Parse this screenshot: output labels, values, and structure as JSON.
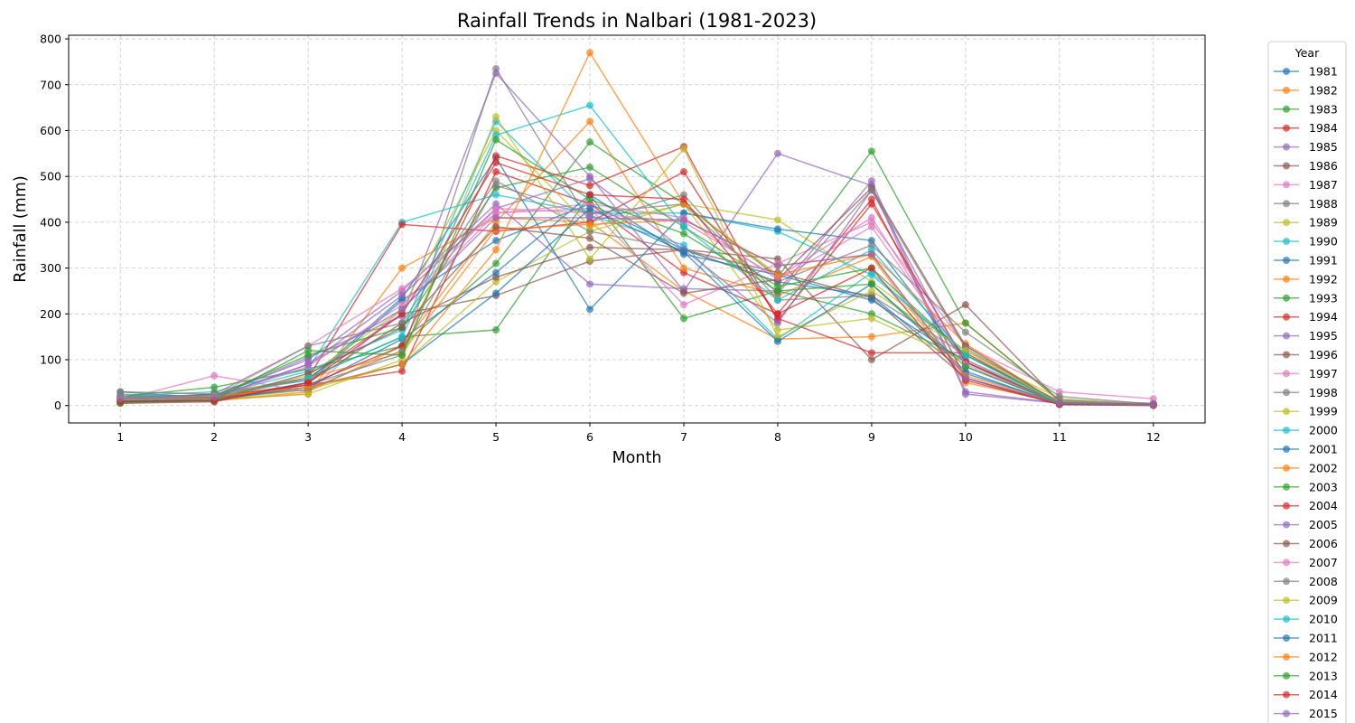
{
  "chart_data": {
    "type": "line",
    "title": "Rainfall Trends in Nalbari (1981-2023)",
    "xlabel": "Month",
    "ylabel": "Rainfall (mm)",
    "x": [
      1,
      2,
      3,
      4,
      5,
      6,
      7,
      8,
      9,
      10,
      11,
      12
    ],
    "xlim": [
      0.45,
      12.55
    ],
    "ylim": [
      -38,
      808
    ],
    "yticks": [
      0,
      100,
      200,
      300,
      400,
      500,
      600,
      700,
      800
    ],
    "grid": true,
    "legend": {
      "title": "Year",
      "placement": "outside-right"
    },
    "series": [
      {
        "name": "1981",
        "color": "#1f77b4",
        "values": [
          30,
          15,
          50,
          230,
          360,
          440,
          340,
          270,
          240,
          70,
          5,
          2
        ]
      },
      {
        "name": "1982",
        "color": "#ff7f0e",
        "values": [
          20,
          12,
          25,
          300,
          410,
          400,
          250,
          145,
          150,
          180,
          10,
          3
        ]
      },
      {
        "name": "1983",
        "color": "#2ca02c",
        "values": [
          8,
          20,
          60,
          150,
          165,
          460,
          190,
          250,
          200,
          100,
          4,
          2
        ]
      },
      {
        "name": "1984",
        "color": "#d62728",
        "values": [
          15,
          20,
          45,
          75,
          510,
          440,
          290,
          200,
          450,
          60,
          3,
          1
        ]
      },
      {
        "name": "1985",
        "color": "#9467bd",
        "values": [
          20,
          22,
          100,
          250,
          440,
          265,
          255,
          250,
          490,
          30,
          5,
          2
        ]
      },
      {
        "name": "1986",
        "color": "#8c564b",
        "values": [
          10,
          15,
          60,
          200,
          240,
          315,
          340,
          320,
          100,
          220,
          8,
          3
        ]
      },
      {
        "name": "1987",
        "color": "#e377c2",
        "values": [
          12,
          65,
          30,
          210,
          420,
          430,
          220,
          310,
          400,
          130,
          30,
          15
        ]
      },
      {
        "name": "1988",
        "color": "#7f7f7f",
        "values": [
          25,
          15,
          45,
          110,
          735,
          400,
          460,
          230,
          240,
          110,
          10,
          5
        ]
      },
      {
        "name": "1989",
        "color": "#bcbd22",
        "values": [
          15,
          12,
          35,
          90,
          270,
          380,
          440,
          405,
          270,
          120,
          15,
          2
        ]
      },
      {
        "name": "1990",
        "color": "#17becf",
        "values": [
          20,
          30,
          80,
          400,
          460,
          420,
          420,
          380,
          285,
          110,
          8,
          1
        ]
      },
      {
        "name": "1991",
        "color": "#1f77b4",
        "values": [
          10,
          25,
          55,
          235,
          540,
          210,
          420,
          385,
          360,
          95,
          3,
          0
        ]
      },
      {
        "name": "1992",
        "color": "#ff7f0e",
        "values": [
          15,
          10,
          30,
          130,
          400,
          620,
          300,
          240,
          325,
          50,
          6,
          1
        ]
      },
      {
        "name": "1993",
        "color": "#2ca02c",
        "values": [
          20,
          40,
          80,
          130,
          310,
          575,
          440,
          280,
          555,
          180,
          12,
          2
        ]
      },
      {
        "name": "1994",
        "color": "#d62728",
        "values": [
          15,
          25,
          60,
          395,
          380,
          400,
          510,
          190,
          115,
          115,
          4,
          1
        ]
      },
      {
        "name": "1995",
        "color": "#9467bd",
        "values": [
          12,
          18,
          105,
          195,
          725,
          500,
          250,
          550,
          480,
          25,
          5,
          1
        ]
      },
      {
        "name": "1996",
        "color": "#8c564b",
        "values": [
          5,
          8,
          50,
          180,
          280,
          345,
          340,
          290,
          235,
          60,
          2,
          0
        ]
      },
      {
        "name": "1997",
        "color": "#e377c2",
        "values": [
          10,
          20,
          130,
          255,
          420,
          440,
          410,
          275,
          390,
          100,
          10,
          5
        ]
      },
      {
        "name": "1998",
        "color": "#7f7f7f",
        "values": [
          30,
          25,
          130,
          180,
          490,
          380,
          340,
          270,
          350,
          160,
          20,
          3
        ]
      },
      {
        "name": "1999",
        "color": "#bcbd22",
        "values": [
          15,
          20,
          65,
          210,
          600,
          390,
          440,
          165,
          190,
          95,
          4,
          1
        ]
      },
      {
        "name": "2000",
        "color": "#17becf",
        "values": [
          18,
          22,
          75,
          165,
          620,
          415,
          350,
          145,
          290,
          110,
          5,
          1
        ]
      },
      {
        "name": "2001",
        "color": "#1f77b4",
        "values": [
          8,
          14,
          40,
          145,
          290,
          460,
          330,
          285,
          230,
          95,
          4,
          1
        ]
      },
      {
        "name": "2002",
        "color": "#ff7f0e",
        "values": [
          12,
          16,
          60,
          115,
          385,
          395,
          405,
          305,
          330,
          135,
          3,
          1
        ]
      },
      {
        "name": "2003",
        "color": "#2ca02c",
        "values": [
          15,
          20,
          110,
          170,
          475,
          520,
          390,
          260,
          300,
          110,
          6,
          2
        ]
      },
      {
        "name": "2004",
        "color": "#d62728",
        "values": [
          10,
          15,
          45,
          130,
          545,
          480,
          565,
          185,
          440,
          95,
          5,
          2
        ]
      },
      {
        "name": "2005",
        "color": "#9467bd",
        "values": [
          12,
          18,
          90,
          240,
          430,
          495,
          340,
          180,
          470,
          85,
          4,
          1
        ]
      },
      {
        "name": "2006",
        "color": "#8c564b",
        "values": [
          8,
          12,
          70,
          170,
          390,
          365,
          245,
          275,
          475,
          130,
          5,
          1
        ]
      },
      {
        "name": "2007",
        "color": "#e377c2",
        "values": [
          15,
          18,
          85,
          220,
          430,
          420,
          400,
          280,
          410,
          90,
          5,
          2
        ]
      },
      {
        "name": "2008",
        "color": "#7f7f7f",
        "values": [
          20,
          16,
          35,
          120,
          480,
          420,
          440,
          245,
          470,
          125,
          4,
          1
        ]
      },
      {
        "name": "2009",
        "color": "#bcbd22",
        "values": [
          12,
          14,
          25,
          100,
          630,
          320,
          560,
          150,
          250,
          120,
          4,
          1
        ]
      },
      {
        "name": "2010",
        "color": "#17becf",
        "values": [
          15,
          20,
          60,
          150,
          590,
          655,
          390,
          230,
          340,
          110,
          4,
          1
        ]
      },
      {
        "name": "2011",
        "color": "#1f77b4",
        "values": [
          10,
          12,
          40,
          90,
          245,
          430,
          335,
          140,
          265,
          75,
          3,
          1
        ]
      },
      {
        "name": "2012",
        "color": "#ff7f0e",
        "values": [
          15,
          20,
          40,
          90,
          340,
          770,
          440,
          285,
          330,
          65,
          5,
          1
        ]
      },
      {
        "name": "2013",
        "color": "#2ca02c",
        "values": [
          5,
          12,
          120,
          110,
          580,
          450,
          375,
          250,
          265,
          85,
          5,
          2
        ]
      },
      {
        "name": "2014",
        "color": "#d62728",
        "values": [
          8,
          10,
          50,
          200,
          530,
          460,
          450,
          200,
          300,
          55,
          3,
          1
        ]
      },
      {
        "name": "2015",
        "color": "#9467bd",
        "values": [
          15,
          18,
          90,
          210,
          410,
          410,
          405,
          305,
          330,
          60,
          5,
          1
        ]
      }
    ]
  }
}
